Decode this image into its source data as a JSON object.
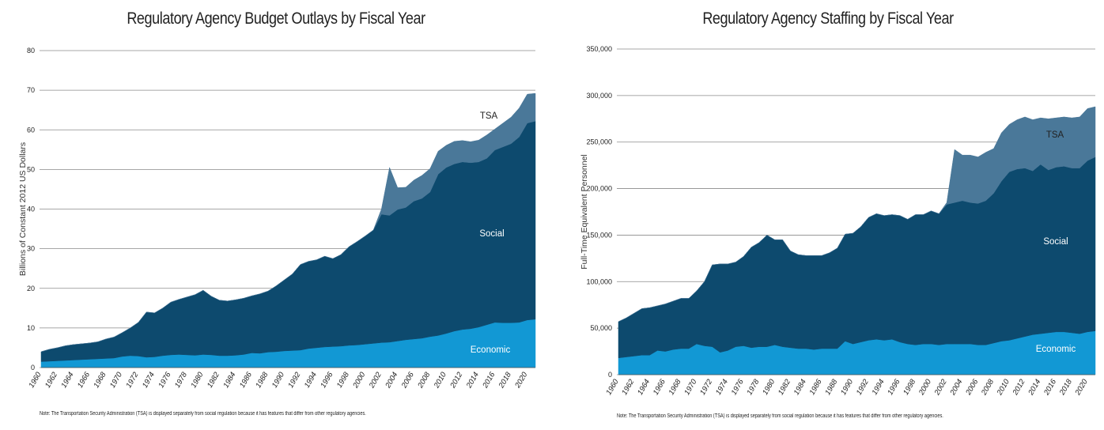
{
  "chart_data": [
    {
      "type": "area",
      "stacked": true,
      "title": "Regulatory Agency Budget Outlays by Fiscal Year",
      "ylabel": "Billions of Constant 2012 US Dollars",
      "xlabel": "",
      "ylim": [
        0,
        80
      ],
      "yticks": [
        "0",
        "10",
        "20",
        "30",
        "40",
        "50",
        "60",
        "70",
        "80"
      ],
      "xtick_labels": [
        "1960",
        "1962",
        "1964",
        "1966",
        "1968",
        "1970",
        "1972",
        "1974",
        "1976",
        "1978",
        "1980",
        "1982",
        "1984",
        "1986",
        "1988",
        "1990",
        "1992",
        "1994",
        "1996",
        "1998",
        "2000",
        "2002",
        "2004",
        "2006",
        "2008",
        "2010",
        "2012",
        "2014",
        "2016",
        "2018",
        "2020"
      ],
      "x": [
        1960,
        1961,
        1962,
        1963,
        1964,
        1965,
        1966,
        1967,
        1968,
        1969,
        1970,
        1971,
        1972,
        1973,
        1974,
        1975,
        1976,
        1977,
        1978,
        1979,
        1980,
        1981,
        1982,
        1983,
        1984,
        1985,
        1986,
        1987,
        1988,
        1989,
        1990,
        1991,
        1992,
        1993,
        1994,
        1995,
        1996,
        1997,
        1998,
        1999,
        2000,
        2001,
        2002,
        2003,
        2004,
        2005,
        2006,
        2007,
        2008,
        2009,
        2010,
        2011,
        2012,
        2013,
        2014,
        2015,
        2016,
        2017,
        2018,
        2019,
        2020,
        2021
      ],
      "grid": true,
      "area_labels": {
        "economic": "Economic",
        "social": "Social",
        "tsa": "TSA"
      },
      "series": [
        {
          "name": "Economic",
          "color": "#1298d4",
          "values": [
            1.5,
            1.6,
            1.7,
            1.8,
            1.9,
            2.0,
            2.1,
            2.2,
            2.3,
            2.4,
            2.8,
            3.0,
            2.9,
            2.6,
            2.7,
            3.0,
            3.2,
            3.3,
            3.2,
            3.1,
            3.3,
            3.2,
            3.0,
            3.0,
            3.1,
            3.3,
            3.7,
            3.6,
            3.9,
            4.0,
            4.2,
            4.3,
            4.4,
            4.8,
            5.0,
            5.2,
            5.3,
            5.4,
            5.6,
            5.7,
            5.9,
            6.1,
            6.3,
            6.4,
            6.7,
            7.0,
            7.2,
            7.4,
            7.8,
            8.1,
            8.6,
            9.2,
            9.6,
            9.8,
            10.2,
            10.8,
            11.4,
            11.3,
            11.3,
            11.4,
            12.0,
            12.2
          ]
        },
        {
          "name": "Social",
          "color": "#0d4a6e",
          "values": [
            2.5,
            3.0,
            3.3,
            3.7,
            3.9,
            4.0,
            4.1,
            4.3,
            4.9,
            5.3,
            6.0,
            7.0,
            8.5,
            11.4,
            11.1,
            12.0,
            13.3,
            13.9,
            14.6,
            15.3,
            16.2,
            14.8,
            14.0,
            13.8,
            14.0,
            14.2,
            14.4,
            15.0,
            15.4,
            16.6,
            17.9,
            19.3,
            21.6,
            22.0,
            22.2,
            22.9,
            22.2,
            23.1,
            24.9,
            26.1,
            27.3,
            28.6,
            32.4,
            32.0,
            33.2,
            33.4,
            34.8,
            35.3,
            36.5,
            40.7,
            41.9,
            42.2,
            42.3,
            41.9,
            41.7,
            42.0,
            43.5,
            44.4,
            45.2,
            46.8,
            49.7,
            50.0
          ]
        },
        {
          "name": "TSA",
          "color": "#4a7899",
          "values": [
            0,
            0,
            0,
            0,
            0,
            0,
            0,
            0,
            0,
            0,
            0,
            0,
            0,
            0,
            0,
            0,
            0,
            0,
            0,
            0,
            0,
            0,
            0,
            0,
            0,
            0,
            0,
            0,
            0,
            0,
            0,
            0,
            0,
            0,
            0,
            0,
            0,
            0,
            0,
            0,
            0,
            0,
            1.3,
            12.1,
            5.5,
            5.1,
            5.3,
            5.8,
            5.9,
            5.8,
            5.6,
            5.7,
            5.4,
            5.3,
            5.5,
            5.9,
            5.3,
            6.0,
            6.7,
            7.3,
            7.3,
            7.0
          ]
        }
      ]
    },
    {
      "type": "area",
      "stacked": true,
      "title": "Regulatory Agency Staffing by Fiscal Year",
      "ylabel": "Full-Time Equivalent Personnel",
      "xlabel": "",
      "ylim": [
        0,
        350000
      ],
      "yticks": [
        "0",
        "50,000",
        "100,000",
        "150,000",
        "200,000",
        "250,000",
        "300,000",
        "350,000"
      ],
      "xtick_labels": [
        "1960",
        "1962",
        "1964",
        "1966",
        "1968",
        "1970",
        "1972",
        "1974",
        "1976",
        "1978",
        "1980",
        "1982",
        "1984",
        "1986",
        "1988",
        "1990",
        "1992",
        "1994",
        "1996",
        "1998",
        "2000",
        "2002",
        "2004",
        "2006",
        "2008",
        "2010",
        "2012",
        "2014",
        "2016",
        "2018",
        "2020"
      ],
      "x": [
        1960,
        1961,
        1962,
        1963,
        1964,
        1965,
        1966,
        1967,
        1968,
        1969,
        1970,
        1971,
        1972,
        1973,
        1974,
        1975,
        1976,
        1977,
        1978,
        1979,
        1980,
        1981,
        1982,
        1983,
        1984,
        1985,
        1986,
        1987,
        1988,
        1989,
        1990,
        1991,
        1992,
        1993,
        1994,
        1995,
        1996,
        1997,
        1998,
        1999,
        2000,
        2001,
        2002,
        2003,
        2004,
        2005,
        2006,
        2007,
        2008,
        2009,
        2010,
        2011,
        2012,
        2013,
        2014,
        2015,
        2016,
        2017,
        2018,
        2019,
        2020,
        2021
      ],
      "grid": true,
      "area_labels": {
        "economic": "Economic",
        "social": "Social",
        "tsa": "TSA"
      },
      "series": [
        {
          "name": "Economic",
          "color": "#1298d4",
          "values": [
            18000,
            19000,
            20000,
            21000,
            21000,
            26000,
            25000,
            27000,
            28000,
            28000,
            33000,
            31000,
            30000,
            24000,
            26000,
            30000,
            31000,
            29000,
            30000,
            30000,
            32000,
            30000,
            29000,
            28000,
            28000,
            27000,
            28000,
            28000,
            28000,
            36000,
            33000,
            35000,
            37000,
            38000,
            37000,
            38000,
            35000,
            33000,
            32000,
            33000,
            33000,
            32000,
            33000,
            33000,
            33000,
            33000,
            32000,
            32000,
            34000,
            36000,
            37000,
            39000,
            41000,
            43000,
            44000,
            45000,
            46000,
            46000,
            45000,
            44000,
            46000,
            47000
          ]
        },
        {
          "name": "Social",
          "color": "#0d4a6e",
          "values": [
            39000,
            42000,
            46000,
            50000,
            51000,
            48000,
            51000,
            52000,
            54000,
            54000,
            57000,
            69000,
            88000,
            95000,
            93000,
            91000,
            96000,
            108000,
            112000,
            120000,
            113000,
            115000,
            104000,
            101000,
            100000,
            101000,
            100000,
            103000,
            108000,
            115000,
            119000,
            124000,
            132000,
            135000,
            134000,
            134000,
            136000,
            134000,
            140000,
            139000,
            143000,
            141000,
            150000,
            152000,
            154000,
            152000,
            152000,
            155000,
            161000,
            172000,
            181000,
            182000,
            181000,
            176000,
            182000,
            175000,
            177000,
            178000,
            177000,
            178000,
            184000,
            187000
          ]
        },
        {
          "name": "TSA",
          "color": "#4a7899",
          "values": [
            0,
            0,
            0,
            0,
            0,
            0,
            0,
            0,
            0,
            0,
            0,
            0,
            0,
            0,
            0,
            0,
            0,
            0,
            0,
            0,
            0,
            0,
            0,
            0,
            0,
            0,
            0,
            0,
            0,
            0,
            0,
            0,
            0,
            0,
            0,
            0,
            0,
            0,
            0,
            0,
            0,
            0,
            2000,
            57000,
            49000,
            51000,
            50000,
            52000,
            48000,
            52000,
            51000,
            53000,
            55000,
            55000,
            50000,
            55000,
            53000,
            53000,
            54000,
            55000,
            56000,
            54000
          ]
        }
      ]
    }
  ],
  "notes": [
    "Note: The Transportation Security Administration (TSA) is displayed separately from social regulation because it has features that differ from other regulatory agencies.",
    "Note: The Transportation Security Administration (TSA) is displayed separately from social regulation because it has features that differ from other regulatory agencies."
  ]
}
